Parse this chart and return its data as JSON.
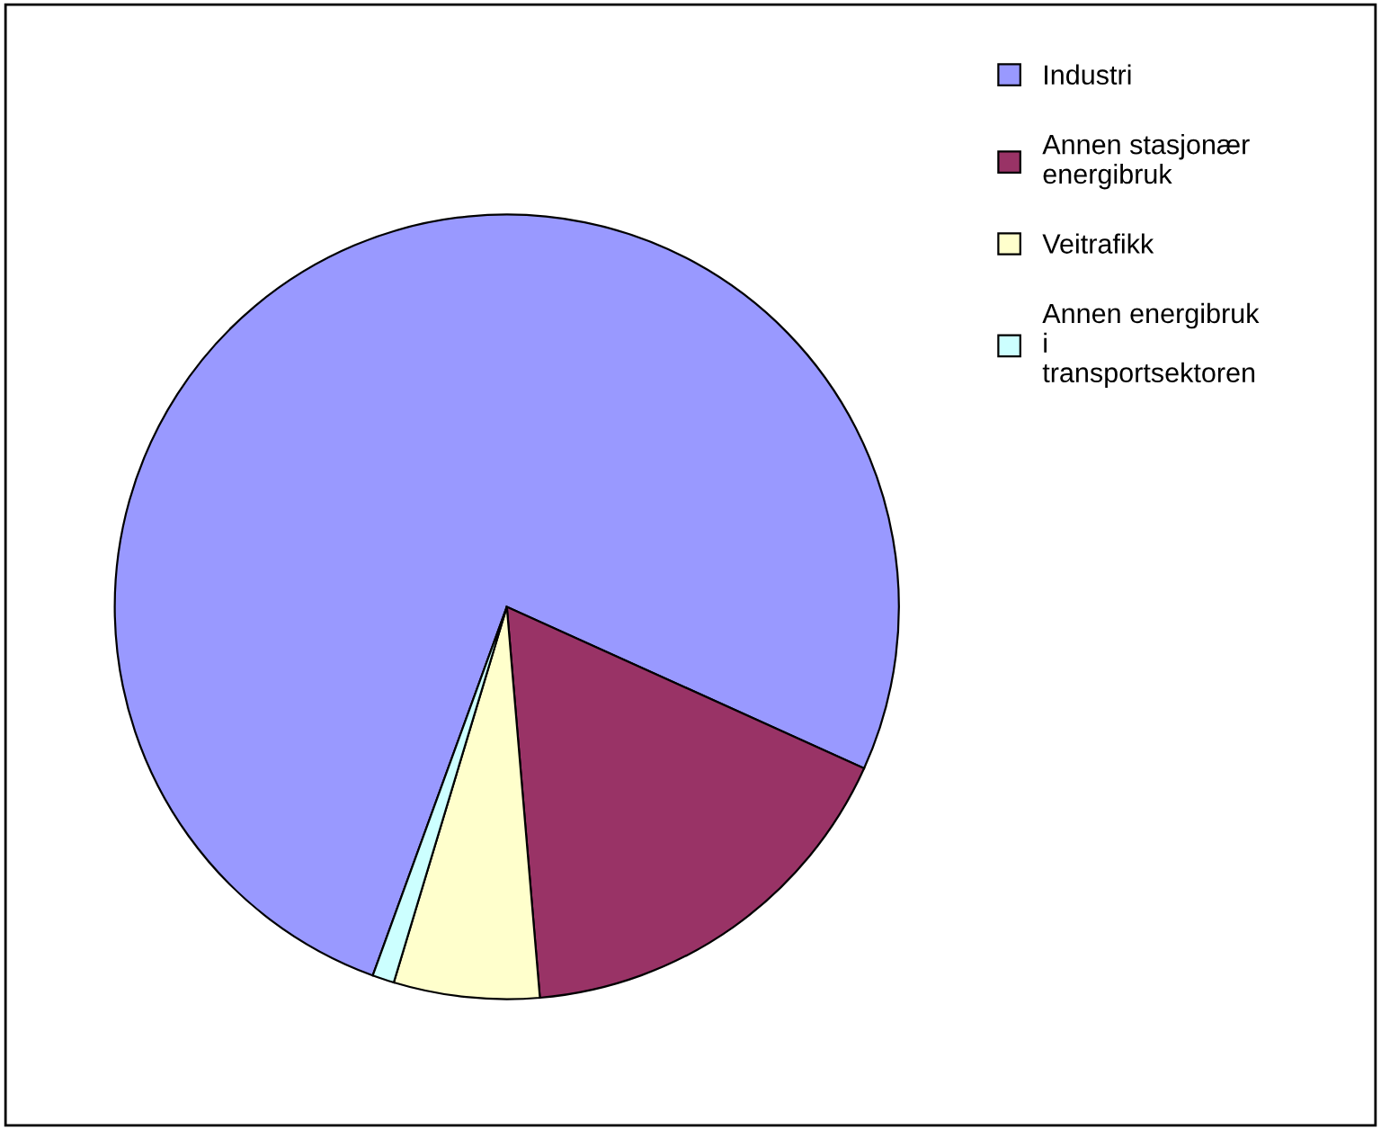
{
  "chart_data": {
    "type": "pie",
    "categories": [
      "Industri",
      "Annen stasjonær energibruk",
      "Veitrafikk",
      "Annen energibruk i transportsektoren"
    ],
    "values": [
      76.2,
      16.9,
      6.0,
      0.9
    ],
    "colors": [
      "#9999ff",
      "#993366",
      "#ffffcc",
      "#ccffff"
    ],
    "legend": "top right"
  }
}
